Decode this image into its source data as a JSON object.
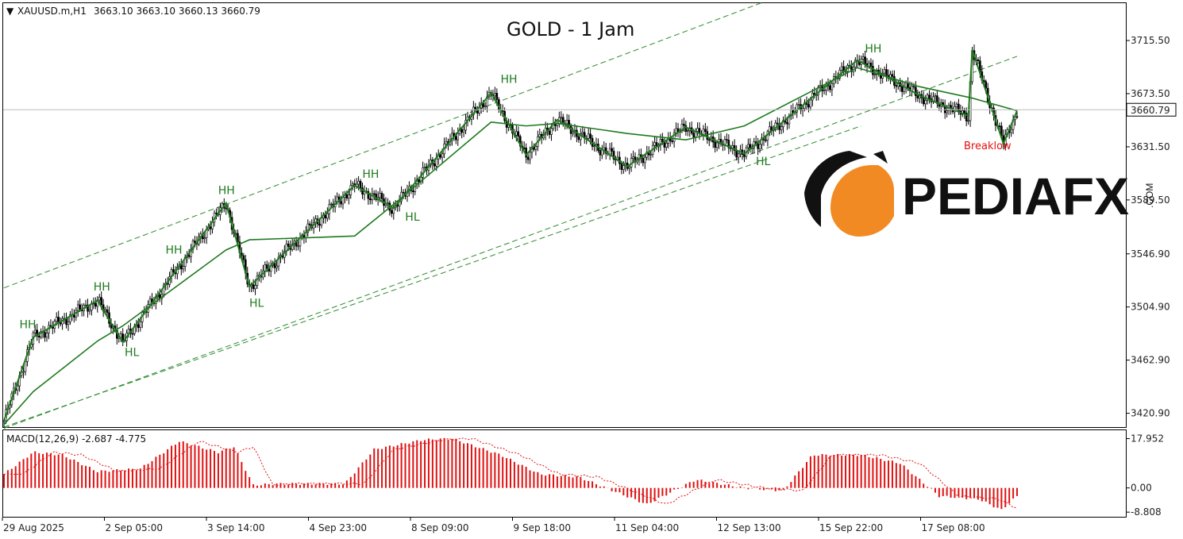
{
  "header": {
    "symbol_tf": "XAUUSD.m,H1",
    "ohlc": "3663.10 3663.10 3660.13 3660.79"
  },
  "title": "GOLD - 1 Jam",
  "logo": {
    "text": "PEDIAFX",
    "suffix": ".COM",
    "brand_color": "#f28a23"
  },
  "current_price_label": "3660.79",
  "macd_label": "MACD(12,26,9) -2.687 -4.775",
  "annotation_breaklow": "Breaklow",
  "colors": {
    "zigzag": "#1f7a1f",
    "channel": "#2e8b2e",
    "macd_hist": "#e01010",
    "macd_signal": "#e01010",
    "candle": "#000000"
  },
  "chart_data": [
    {
      "type": "candlestick",
      "symbol": "XAUUSD.m",
      "timeframe": "H1",
      "y_ticks": [
        3715.5,
        3673.5,
        3631.5,
        3589.5,
        3546.9,
        3504.9,
        3462.9,
        3420.9
      ],
      "ylim": [
        3410,
        3745
      ],
      "x_ticks": [
        "29 Aug 2025",
        "2 Sep 05:00",
        "3 Sep 14:00",
        "4 Sep 23:00",
        "8 Sep 09:00",
        "9 Sep 18:00",
        "11 Sep 04:00",
        "12 Sep 13:00",
        "15 Sep 22:00",
        "17 Sep 08:00"
      ],
      "current_price": 3660.79,
      "zigzag_points": [
        {
          "i": 0,
          "p": 3415
        },
        {
          "i": 15,
          "p": 3481
        },
        {
          "i": 48,
          "p": 3510
        },
        {
          "i": 61,
          "p": 3477
        },
        {
          "i": 114,
          "p": 3587
        },
        {
          "i": 126,
          "p": 3521
        },
        {
          "i": 180,
          "p": 3601
        },
        {
          "i": 200,
          "p": 3583
        },
        {
          "i": 250,
          "p": 3674
        },
        {
          "i": 268,
          "p": 3625
        },
        {
          "i": 284,
          "p": 3653
        },
        {
          "i": 320,
          "p": 3616
        },
        {
          "i": 350,
          "p": 3647
        },
        {
          "i": 380,
          "p": 3626
        },
        {
          "i": 438,
          "p": 3700
        },
        {
          "i": 470,
          "p": 3672
        },
        {
          "i": 495,
          "p": 3656
        },
        {
          "i": 497,
          "p": 3708
        },
        {
          "i": 513,
          "p": 3634
        },
        {
          "i": 520,
          "p": 3660
        }
      ],
      "ma_points": [
        {
          "i": 0,
          "p": 3412
        },
        {
          "i": 15,
          "p": 3438
        },
        {
          "i": 48,
          "p": 3478
        },
        {
          "i": 61,
          "p": 3490
        },
        {
          "i": 114,
          "p": 3550
        },
        {
          "i": 126,
          "p": 3558
        },
        {
          "i": 180,
          "p": 3561
        },
        {
          "i": 200,
          "p": 3586
        },
        {
          "i": 250,
          "p": 3651
        },
        {
          "i": 268,
          "p": 3648
        },
        {
          "i": 284,
          "p": 3650
        },
        {
          "i": 320,
          "p": 3642
        },
        {
          "i": 350,
          "p": 3637
        },
        {
          "i": 380,
          "p": 3648
        },
        {
          "i": 438,
          "p": 3694
        },
        {
          "i": 470,
          "p": 3679
        },
        {
          "i": 497,
          "p": 3670
        },
        {
          "i": 520,
          "p": 3660
        }
      ],
      "labels": [
        {
          "text": "HH",
          "i": 12,
          "p": 3488
        },
        {
          "text": "HH",
          "i": 50,
          "p": 3518
        },
        {
          "text": "HL",
          "i": 66,
          "p": 3466
        },
        {
          "text": "HH",
          "i": 87,
          "p": 3547
        },
        {
          "text": "HH",
          "i": 114,
          "p": 3594
        },
        {
          "text": "HL",
          "i": 130,
          "p": 3505
        },
        {
          "text": "HH",
          "i": 188,
          "p": 3607
        },
        {
          "text": "HL",
          "i": 210,
          "p": 3573
        },
        {
          "text": "HH",
          "i": 259,
          "p": 3682
        },
        {
          "text": "HL",
          "i": 390,
          "p": 3617
        },
        {
          "text": "HH",
          "i": 446,
          "p": 3706
        }
      ],
      "channel": {
        "upper": [
          {
            "i": 0,
            "p": 3520
          },
          {
            "i": 390,
            "p": 3746
          }
        ],
        "mid": [
          {
            "i": 0,
            "p": 3409
          },
          {
            "i": 520,
            "p": 3703
          }
        ],
        "lower": [
          {
            "i": 0,
            "p": 3410
          },
          {
            "i": 440,
            "p": 3648
          }
        ]
      }
    },
    {
      "type": "bar",
      "name": "MACD(12,26,9)",
      "macd": -2.687,
      "signal": -4.775,
      "y_ticks": [
        17.952,
        0.0,
        -8.808
      ],
      "ylim": [
        -10.5,
        21
      ],
      "histogram_keypoints": [
        {
          "i": 0,
          "v": 5
        },
        {
          "i": 15,
          "v": 13
        },
        {
          "i": 30,
          "v": 12
        },
        {
          "i": 48,
          "v": 6
        },
        {
          "i": 70,
          "v": 7
        },
        {
          "i": 90,
          "v": 17
        },
        {
          "i": 110,
          "v": 13
        },
        {
          "i": 118,
          "v": 15
        },
        {
          "i": 128,
          "v": 1
        },
        {
          "i": 140,
          "v": 1.5
        },
        {
          "i": 175,
          "v": 1.5
        },
        {
          "i": 190,
          "v": 14
        },
        {
          "i": 215,
          "v": 17.5
        },
        {
          "i": 230,
          "v": 18
        },
        {
          "i": 255,
          "v": 12
        },
        {
          "i": 275,
          "v": 5
        },
        {
          "i": 295,
          "v": 4
        },
        {
          "i": 330,
          "v": -6
        },
        {
          "i": 355,
          "v": 3
        },
        {
          "i": 380,
          "v": 0
        },
        {
          "i": 400,
          "v": -1
        },
        {
          "i": 415,
          "v": 12
        },
        {
          "i": 440,
          "v": 12
        },
        {
          "i": 460,
          "v": 9
        },
        {
          "i": 480,
          "v": -3
        },
        {
          "i": 500,
          "v": -4
        },
        {
          "i": 512,
          "v": -8
        },
        {
          "i": 520,
          "v": -3
        }
      ]
    }
  ]
}
